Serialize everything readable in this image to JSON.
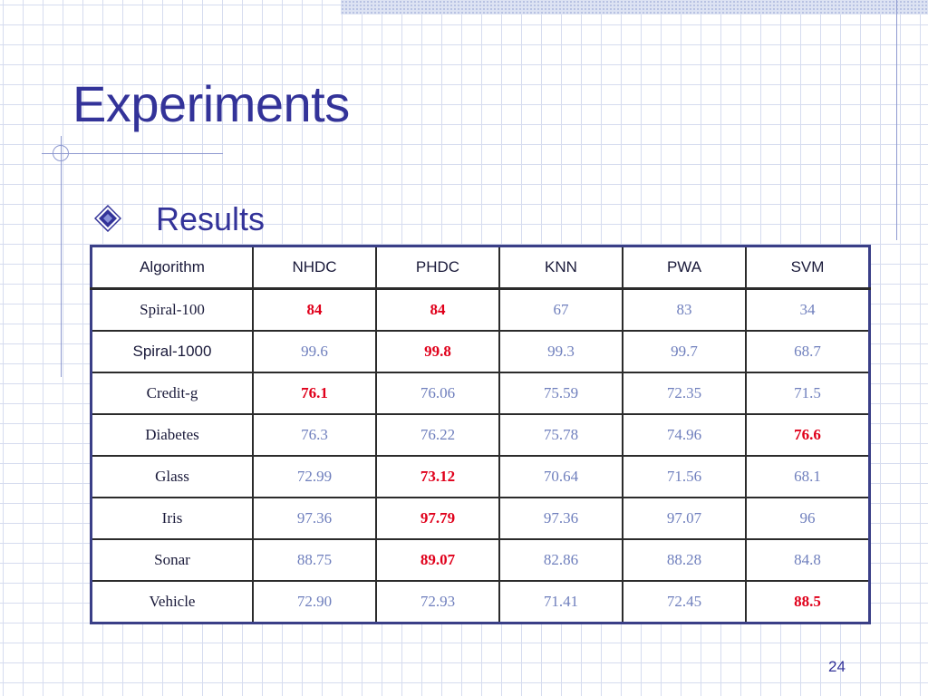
{
  "slide": {
    "title": "Experiments",
    "bullet": "Results",
    "page_number": "24",
    "colors": {
      "title": "#333399",
      "value_normal": "#6f7fbd",
      "value_best": "#e0001b",
      "table_frame": "#3a3f87"
    },
    "bullet_icon": "diamond-bullet-icon"
  },
  "table": {
    "columns": [
      "Algorithm",
      "NHDC",
      "PHDC",
      "KNN",
      "PWA",
      "SVM"
    ],
    "rows": [
      {
        "name": "Spiral-100",
        "values": [
          "84",
          "84",
          "67",
          "83",
          "34"
        ],
        "best": [
          0,
          1
        ]
      },
      {
        "name": "Spiral-1000",
        "values": [
          "99.6",
          "99.8",
          "99.3",
          "99.7",
          "68.7"
        ],
        "best": [
          1
        ]
      },
      {
        "name": "Credit-g",
        "values": [
          "76.1",
          "76.06",
          "75.59",
          "72.35",
          "71.5"
        ],
        "best": [
          0
        ]
      },
      {
        "name": "Diabetes",
        "values": [
          "76.3",
          "76.22",
          "75.78",
          "74.96",
          "76.6"
        ],
        "best": [
          4
        ]
      },
      {
        "name": "Glass",
        "values": [
          "72.99",
          "73.12",
          "70.64",
          "71.56",
          "68.1"
        ],
        "best": [
          1
        ]
      },
      {
        "name": "Iris",
        "values": [
          "97.36",
          "97.79",
          "97.36",
          "97.07",
          "96"
        ],
        "best": [
          1
        ]
      },
      {
        "name": "Sonar",
        "values": [
          "88.75",
          "89.07",
          "82.86",
          "88.28",
          "84.8"
        ],
        "best": [
          1
        ]
      },
      {
        "name": "Vehicle",
        "values": [
          "72.90",
          "72.93",
          "71.41",
          "72.45",
          "88.5"
        ],
        "best": [
          4
        ]
      }
    ]
  }
}
